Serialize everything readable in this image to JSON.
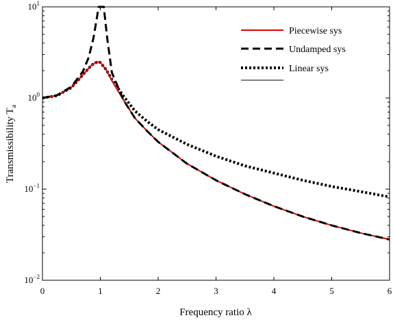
{
  "chart_data": {
    "type": "line",
    "title": "",
    "xlabel": "Frequency   ratio λ",
    "ylabel_main": "Transmissibility  T",
    "ylabel_sub": "a",
    "xlim": [
      0,
      6
    ],
    "ylim": [
      0.01,
      10
    ],
    "y_scale": "log",
    "grid": false,
    "legend_position": "top-right",
    "x_ticks": [
      "0",
      "1",
      "2",
      "3",
      "4",
      "5",
      "6"
    ],
    "y_ticks": [
      {
        "base": "10",
        "exp": "−2",
        "value": 0.01
      },
      {
        "base": "10",
        "exp": "−1",
        "value": 0.1
      },
      {
        "base": "10",
        "exp": "0",
        "value": 1
      },
      {
        "base": "10",
        "exp": "1",
        "value": 10
      }
    ],
    "series": [
      {
        "name": "Piecewise sys",
        "color": "#e00000",
        "style": "solid",
        "x": [
          0,
          0.25,
          0.5,
          0.7,
          0.85,
          0.95,
          1.0,
          1.1,
          1.2,
          1.4,
          1.6,
          1.8,
          2.0,
          2.5,
          3.0,
          3.5,
          4.0,
          4.5,
          5.0,
          5.5,
          6.0
        ],
        "y": [
          1.0,
          1.06,
          1.3,
          1.8,
          2.3,
          2.5,
          2.45,
          2.05,
          1.55,
          0.95,
          0.6,
          0.44,
          0.33,
          0.19,
          0.125,
          0.088,
          0.065,
          0.05,
          0.04,
          0.033,
          0.028
        ]
      },
      {
        "name": "Undamped sys",
        "color": "#000000",
        "style": "dashed",
        "x": [
          0,
          0.25,
          0.5,
          0.7,
          0.8,
          0.88,
          0.94,
          0.97,
          1.0,
          1.06,
          1.12,
          1.2,
          1.4,
          1.6,
          1.8,
          2.0,
          2.5,
          3.0,
          3.5,
          4.0,
          4.5,
          5.0,
          5.5,
          6.0
        ],
        "y": [
          1.0,
          1.07,
          1.33,
          1.96,
          2.8,
          4.5,
          7.5,
          10,
          10,
          10,
          4.5,
          1.9,
          0.95,
          0.6,
          0.44,
          0.33,
          0.19,
          0.125,
          0.088,
          0.065,
          0.05,
          0.04,
          0.033,
          0.028
        ]
      },
      {
        "name": "Linear sys",
        "color": "#000000",
        "style": "dotted",
        "x": [
          0,
          0.25,
          0.5,
          0.7,
          0.85,
          0.95,
          1.0,
          1.1,
          1.2,
          1.4,
          1.6,
          1.8,
          2.0,
          2.5,
          3.0,
          3.5,
          4.0,
          4.5,
          5.0,
          5.5,
          6.0
        ],
        "y": [
          1.0,
          1.06,
          1.3,
          1.8,
          2.3,
          2.5,
          2.45,
          2.05,
          1.6,
          1.05,
          0.72,
          0.56,
          0.45,
          0.31,
          0.23,
          0.18,
          0.15,
          0.125,
          0.107,
          0.094,
          0.082
        ]
      }
    ]
  }
}
